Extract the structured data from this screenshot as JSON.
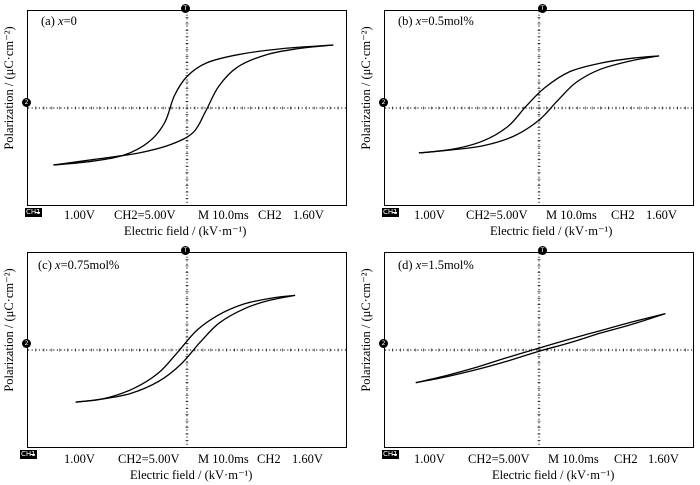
{
  "chart_data": [
    {
      "type": "line",
      "title": "(a) x=0",
      "title_prefix": "(a) ",
      "title_var": "x",
      "title_suffix": "=0",
      "xlabel": "Electric field / (kV·m⁻¹)",
      "ylabel": "Polarization / (μC·cm⁻²)",
      "status": {
        "ch1": "1.00V",
        "ch2": "CH2=5.00V",
        "timebase": "M  10.0ms",
        "ch2b": "CH2",
        "level": "1.60V"
      },
      "grid": "dotted crosshair",
      "xlim": [
        -5,
        5
      ],
      "ylim": [
        -4,
        4
      ],
      "series": [
        {
          "values": [
            [
              4.6,
              2.6
            ],
            [
              3.5,
              2.45
            ],
            [
              2.5,
              2.2
            ],
            [
              1.6,
              1.7
            ],
            [
              1.0,
              0.9
            ],
            [
              0.6,
              -0.1
            ],
            [
              0.2,
              -1.0
            ],
            [
              -0.5,
              -1.5
            ],
            [
              -1.5,
              -1.85
            ],
            [
              -2.8,
              -2.1
            ],
            [
              -4.2,
              -2.35
            ]
          ]
        },
        {
          "values": [
            [
              -4.2,
              -2.35
            ],
            [
              -3.0,
              -2.2
            ],
            [
              -2.0,
              -1.95
            ],
            [
              -1.2,
              -1.4
            ],
            [
              -0.7,
              -0.6
            ],
            [
              -0.4,
              0.5
            ],
            [
              0.0,
              1.3
            ],
            [
              0.6,
              1.85
            ],
            [
              1.6,
              2.2
            ],
            [
              3.0,
              2.45
            ],
            [
              4.6,
              2.6
            ]
          ]
        }
      ]
    },
    {
      "type": "line",
      "title": "(b) x=0.5mol%",
      "title_prefix": "(b) ",
      "title_var": "x",
      "title_suffix": "=0.5mol%",
      "xlabel": "Electric field / (kV·m⁻¹)",
      "ylabel": "Polarization / (μC·cm⁻²)",
      "status": {
        "ch1": "1.00V",
        "ch2": "CH2=5.00V",
        "timebase": "M  10.0ms",
        "ch2b": "CH2",
        "level": "1.60V"
      },
      "grid": "dotted crosshair",
      "xlim": [
        -5,
        5
      ],
      "ylim": [
        -4,
        4
      ],
      "series": [
        {
          "values": [
            [
              3.9,
              2.15
            ],
            [
              3.0,
              1.95
            ],
            [
              2.0,
              1.6
            ],
            [
              1.2,
              1.05
            ],
            [
              0.6,
              0.3
            ],
            [
              0.0,
              -0.5
            ],
            [
              -0.8,
              -1.15
            ],
            [
              -1.8,
              -1.55
            ],
            [
              -3.0,
              -1.75
            ],
            [
              -3.9,
              -1.85
            ]
          ]
        },
        {
          "values": [
            [
              -3.9,
              -1.85
            ],
            [
              -2.8,
              -1.7
            ],
            [
              -1.8,
              -1.35
            ],
            [
              -1.0,
              -0.75
            ],
            [
              -0.4,
              0.1
            ],
            [
              0.2,
              0.85
            ],
            [
              1.0,
              1.5
            ],
            [
              2.0,
              1.85
            ],
            [
              3.0,
              2.05
            ],
            [
              3.9,
              2.15
            ]
          ]
        }
      ]
    },
    {
      "type": "line",
      "title": "(c) x=0.75mol%",
      "title_prefix": "(c) ",
      "title_var": "x",
      "title_suffix": "=0.75mol%",
      "xlabel": "Electric field / (kV·m⁻¹)",
      "ylabel": "Polarization / (μC·cm⁻²)",
      "status": {
        "ch1": "1.00V",
        "ch2": "CH2=5.00V",
        "timebase": "M  10.0ms",
        "ch2b": "CH2",
        "level": "1.60V"
      },
      "grid": "dotted crosshair",
      "xlim": [
        -5,
        5
      ],
      "ylim": [
        -4,
        4
      ],
      "series": [
        {
          "values": [
            [
              3.4,
              2.25
            ],
            [
              2.6,
              2.05
            ],
            [
              1.8,
              1.7
            ],
            [
              1.0,
              1.1
            ],
            [
              0.4,
              0.3
            ],
            [
              -0.2,
              -0.6
            ],
            [
              -0.9,
              -1.3
            ],
            [
              -1.8,
              -1.8
            ],
            [
              -2.8,
              -2.05
            ],
            [
              -3.5,
              -2.15
            ]
          ]
        },
        {
          "values": [
            [
              -3.5,
              -2.15
            ],
            [
              -2.6,
              -2.0
            ],
            [
              -1.7,
              -1.6
            ],
            [
              -0.9,
              -0.95
            ],
            [
              -0.3,
              -0.1
            ],
            [
              0.3,
              0.8
            ],
            [
              1.0,
              1.45
            ],
            [
              1.8,
              1.9
            ],
            [
              2.7,
              2.15
            ],
            [
              3.4,
              2.25
            ]
          ]
        }
      ]
    },
    {
      "type": "line",
      "title": "(d) x=1.5mol%",
      "title_prefix": "(d) ",
      "title_var": "x",
      "title_suffix": "=1.5mol%",
      "xlabel": "Electric field / (kV·m⁻¹)",
      "ylabel": "Polarization / (μC·cm⁻²)",
      "status": {
        "ch1": "1.00V",
        "ch2": "CH2=5.00V",
        "timebase": "M  10.0ms",
        "ch2b": "CH2",
        "level": "1.60V"
      },
      "grid": "dotted crosshair",
      "xlim": [
        -5,
        5
      ],
      "ylim": [
        -4,
        4
      ],
      "series": [
        {
          "values": [
            [
              4.1,
              1.5
            ],
            [
              3.0,
              1.15
            ],
            [
              2.0,
              0.8
            ],
            [
              1.0,
              0.45
            ],
            [
              0.0,
              0.08
            ],
            [
              -1.0,
              -0.3
            ],
            [
              -2.0,
              -0.7
            ],
            [
              -3.0,
              -1.05
            ],
            [
              -4.0,
              -1.35
            ]
          ]
        },
        {
          "values": [
            [
              -4.0,
              -1.35
            ],
            [
              -3.0,
              -1.1
            ],
            [
              -2.0,
              -0.8
            ],
            [
              -1.0,
              -0.45
            ],
            [
              0.0,
              -0.05
            ],
            [
              1.0,
              0.3
            ],
            [
              2.0,
              0.7
            ],
            [
              3.0,
              1.05
            ],
            [
              4.1,
              1.5
            ]
          ]
        }
      ]
    }
  ]
}
